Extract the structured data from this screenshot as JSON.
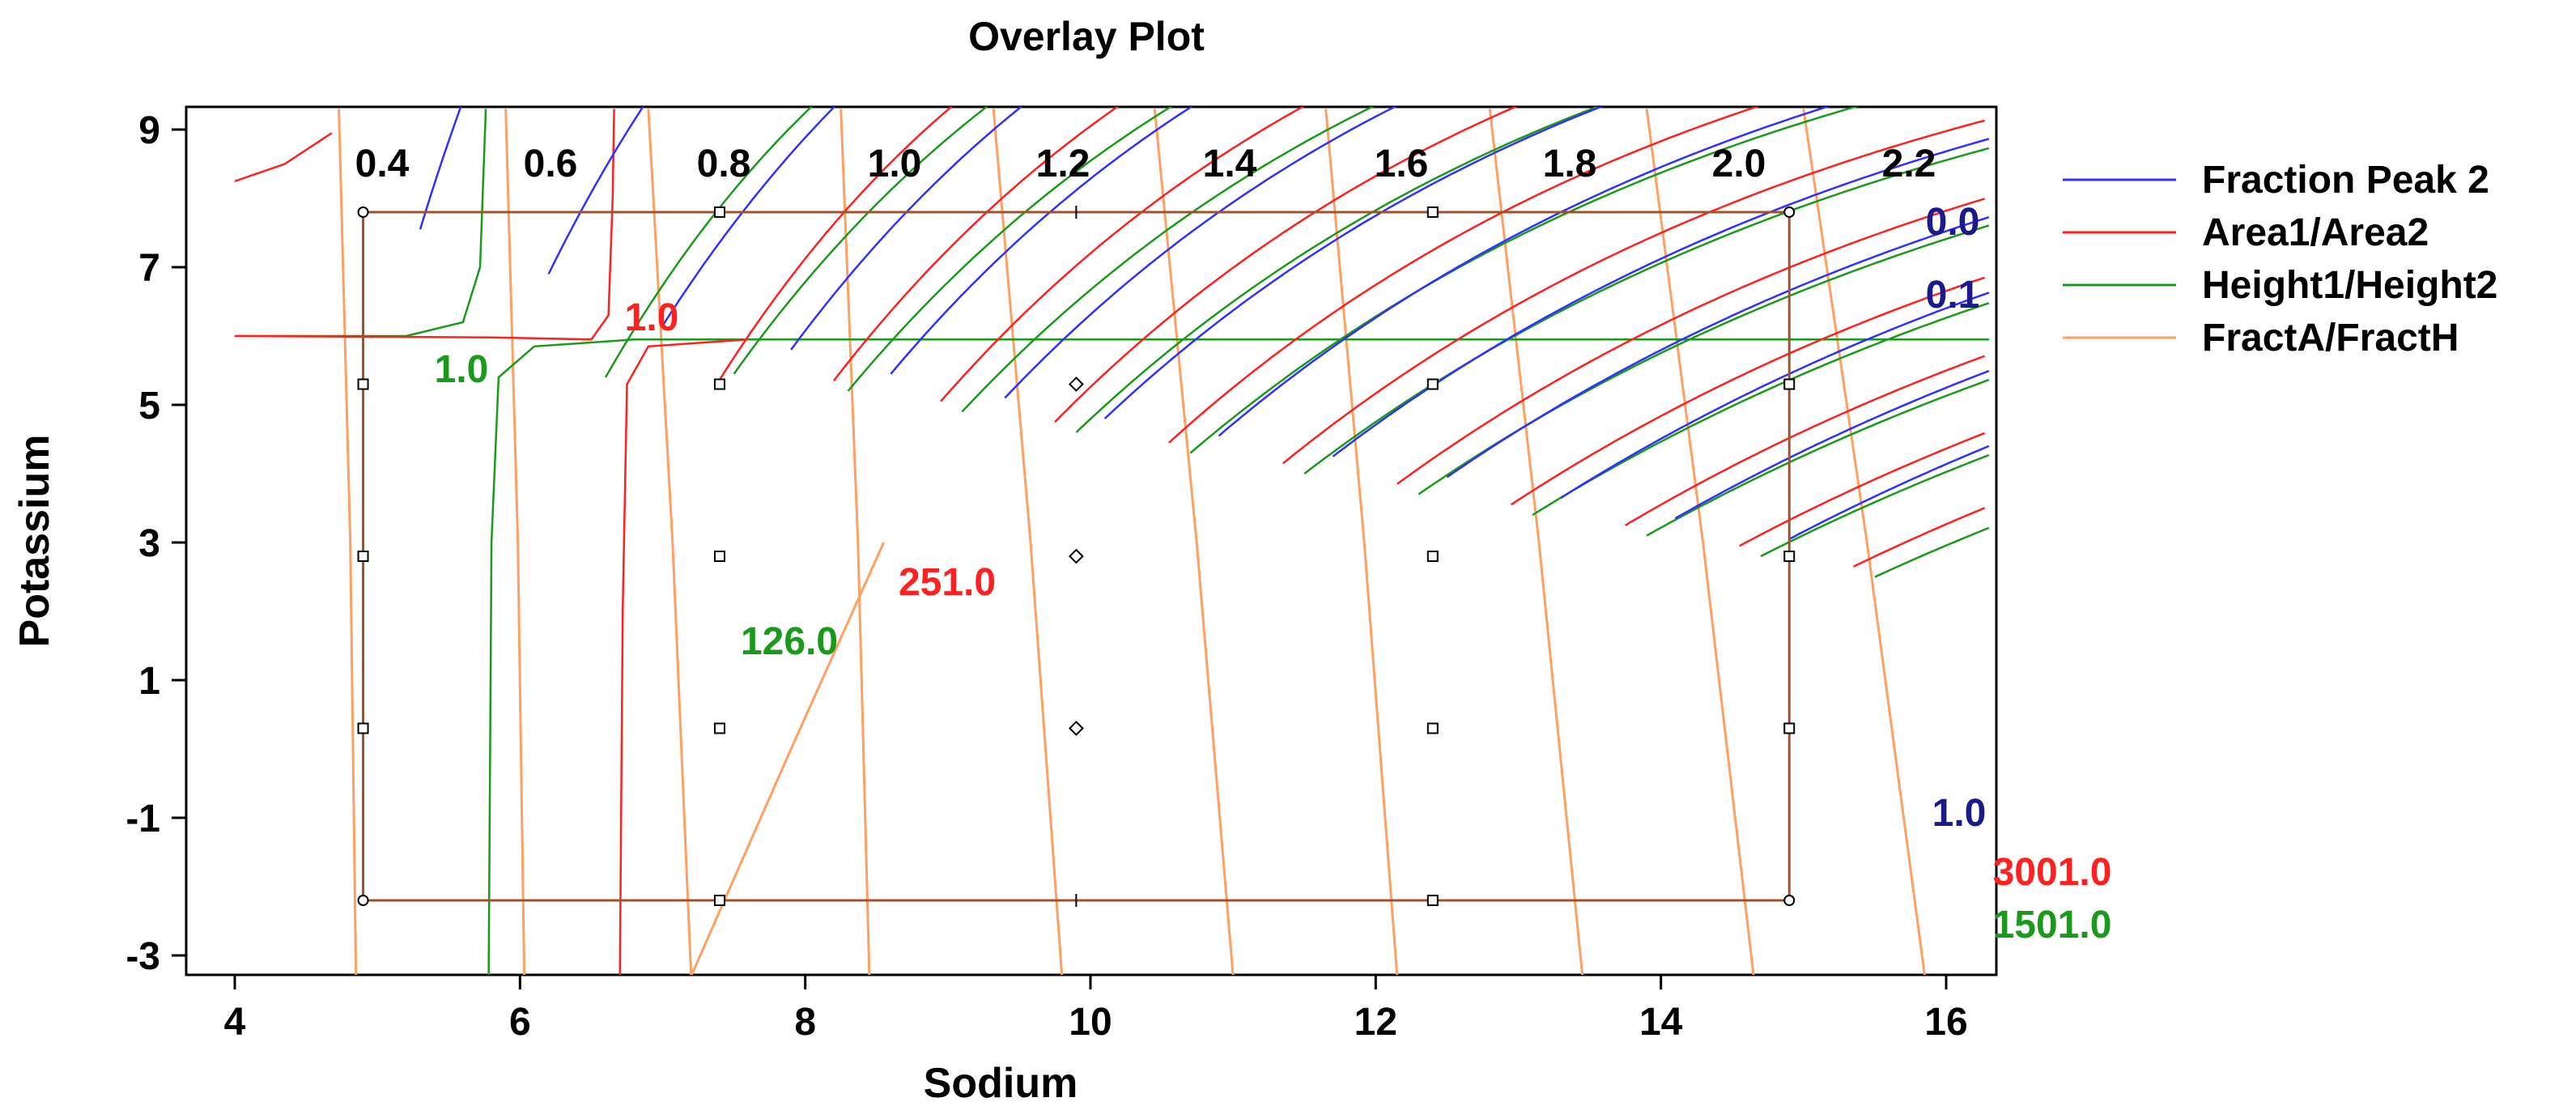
{
  "chart_data": {
    "type": "contour",
    "title": "Overlay Plot",
    "xlabel": "Sodium",
    "ylabel": "Potassium",
    "xlim": [
      4,
      16
    ],
    "ylim": [
      -3,
      9
    ],
    "xticks": [
      "4",
      "6",
      "8",
      "10",
      "12",
      "14",
      "16"
    ],
    "yticks": [
      "-3",
      "-1",
      "1",
      "3",
      "5",
      "7",
      "9"
    ],
    "legend_position": "right",
    "series": [
      {
        "name": "Fraction Peak 2",
        "color": "#3030ff"
      },
      {
        "name": "Area1/Area2",
        "color": "#ff2020"
      },
      {
        "name": "Height1/Height2",
        "color": "#1a9a1a"
      },
      {
        "name": "FractA/FractH",
        "color": "#ffa060"
      }
    ],
    "contour_labels": {
      "fracta": [
        "0.4",
        "0.6",
        "0.8",
        "1.0",
        "1.2",
        "1.4",
        "1.6",
        "1.8",
        "2.0",
        "2.2"
      ],
      "fraction_peak": [
        "0.0",
        "0.1",
        "1.0"
      ],
      "area_ratio": [
        "1.0",
        "251.0",
        "3001.0"
      ],
      "height_ratio": [
        "1.0",
        "126.0",
        "1501.0"
      ]
    },
    "design_points": {
      "corner_circles": [
        [
          4.9,
          7.8
        ],
        [
          14.9,
          7.8
        ],
        [
          4.9,
          -2.2
        ],
        [
          14.9,
          -2.2
        ]
      ],
      "squares": [
        [
          7.4,
          7.8
        ],
        [
          12.4,
          7.8
        ],
        [
          4.9,
          5.3
        ],
        [
          7.4,
          5.3
        ],
        [
          12.4,
          5.3
        ],
        [
          14.9,
          5.3
        ],
        [
          4.9,
          2.8
        ],
        [
          7.4,
          2.8
        ],
        [
          12.4,
          2.8
        ],
        [
          14.9,
          2.8
        ],
        [
          4.9,
          0.3
        ],
        [
          7.4,
          0.3
        ],
        [
          12.4,
          0.3
        ],
        [
          14.9,
          0.3
        ],
        [
          7.4,
          -2.2
        ],
        [
          12.4,
          -2.2
        ]
      ],
      "diamonds": [
        [
          9.9,
          5.3
        ],
        [
          9.9,
          2.8
        ],
        [
          9.9,
          0.3
        ]
      ],
      "plus": [
        [
          9.9,
          7.8
        ],
        [
          9.9,
          -2.2
        ]
      ]
    }
  }
}
